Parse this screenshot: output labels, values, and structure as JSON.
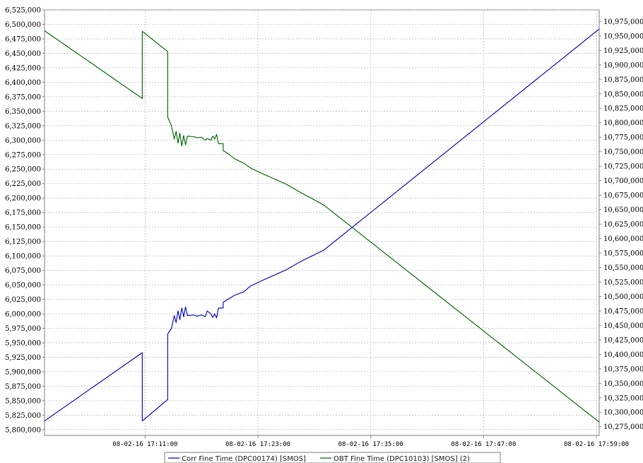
{
  "chart_data": {
    "type": "line",
    "grid": true,
    "legend_position": "bottom",
    "x_tick_labels": [
      "08-02-16 17:11:00",
      "08-02-16 17:23:00",
      "08-02-16 17:35:00",
      "08-02-16 17:47:00",
      "08-02-16 17:59:00"
    ],
    "x_ticks_min": [
      11,
      23,
      35,
      47,
      59
    ],
    "xlim_min": [
      0.3,
      59.3
    ],
    "y_left": {
      "lim": [
        5790000,
        6525000
      ],
      "ticks": [
        5800000,
        5825000,
        5850000,
        5875000,
        5900000,
        5925000,
        5950000,
        5975000,
        6000000,
        6025000,
        6050000,
        6075000,
        6100000,
        6125000,
        6150000,
        6175000,
        6200000,
        6225000,
        6250000,
        6275000,
        6300000,
        6325000,
        6350000,
        6375000,
        6400000,
        6425000,
        6450000,
        6475000,
        6500000,
        6525000
      ],
      "tick_labels": [
        "5,800,000",
        "5,825,000",
        "5,850,000",
        "5,875,000",
        "5,900,000",
        "5,925,000",
        "5,950,000",
        "5,975,000",
        "6,000,000",
        "6,025,000",
        "6,050,000",
        "6,075,000",
        "6,100,000",
        "6,125,000",
        "6,150,000",
        "6,175,000",
        "6,200,000",
        "6,225,000",
        "6,250,000",
        "6,275,000",
        "6,300,000",
        "6,325,000",
        "6,350,000",
        "6,375,000",
        "6,400,000",
        "6,425,000",
        "6,450,000",
        "6,475,000",
        "6,500,000",
        "6,525,000"
      ]
    },
    "y_right": {
      "lim": [
        10260000,
        10995000
      ],
      "ticks": [
        10275000,
        10300000,
        10325000,
        10350000,
        10375000,
        10400000,
        10425000,
        10450000,
        10475000,
        10500000,
        10525000,
        10550000,
        10575000,
        10600000,
        10625000,
        10650000,
        10675000,
        10700000,
        10725000,
        10750000,
        10775000,
        10800000,
        10825000,
        10850000,
        10875000,
        10900000,
        10925000,
        10950000,
        10975000
      ],
      "tick_labels": [
        "10,275,000",
        "10,300,000",
        "10,325,000",
        "10,350,000",
        "10,375,000",
        "10,400,000",
        "10,425,000",
        "10,450,000",
        "10,475,000",
        "10,500,000",
        "10,525,000",
        "10,550,000",
        "10,575,000",
        "10,600,000",
        "10,625,000",
        "10,650,000",
        "10,675,000",
        "10,700,000",
        "10,725,000",
        "10,750,000",
        "10,775,000",
        "10,800,000",
        "10,825,000",
        "10,850,000",
        "10,875,000",
        "10,900,000",
        "10,925,000",
        "10,950,000",
        "10,975,000"
      ]
    },
    "series": [
      {
        "name": "Corr Fine Time (DPC00174) [SMOS]",
        "color": "#0000cc",
        "axis": "left",
        "points": [
          [
            0.3,
            5815000
          ],
          [
            10.7,
            5933000
          ],
          [
            10.7,
            5815000
          ],
          [
            13.4,
            5852000
          ],
          [
            13.4,
            5965000
          ],
          [
            13.8,
            5975000
          ],
          [
            14.1,
            5997000
          ],
          [
            14.3,
            5985000
          ],
          [
            14.5,
            6005000
          ],
          [
            14.7,
            5990000
          ],
          [
            14.9,
            6010000
          ],
          [
            15.1,
            5995000
          ],
          [
            15.3,
            6012000
          ],
          [
            15.5,
            5997000
          ],
          [
            16.2,
            5998000
          ],
          [
            16.5,
            5996000
          ],
          [
            17.0,
            5998000
          ],
          [
            17.4,
            5995000
          ],
          [
            17.6,
            6005000
          ],
          [
            18.0,
            6000000
          ],
          [
            18.2,
            5994000
          ],
          [
            18.4,
            6000000
          ],
          [
            18.6,
            5993000
          ],
          [
            18.8,
            6010000
          ],
          [
            19.3,
            6010000
          ],
          [
            19.3,
            6020000
          ],
          [
            19.8,
            6025000
          ],
          [
            20.5,
            6032000
          ],
          [
            21.5,
            6038000
          ],
          [
            22.2,
            6048000
          ],
          [
            23.5,
            6058000
          ],
          [
            26.0,
            6076000
          ],
          [
            27.5,
            6090000
          ],
          [
            30.0,
            6110000
          ],
          [
            59.3,
            6492000
          ]
        ]
      },
      {
        "name": "OBT Fine Time (DPC10103) [SMOS] (2)",
        "color": "#006600",
        "axis": "right",
        "points": [
          [
            0.3,
            10959000
          ],
          [
            10.7,
            10842000
          ],
          [
            10.7,
            10958000
          ],
          [
            13.4,
            10923000
          ],
          [
            13.4,
            10810000
          ],
          [
            13.8,
            10795000
          ],
          [
            14.1,
            10772000
          ],
          [
            14.3,
            10785000
          ],
          [
            14.5,
            10765000
          ],
          [
            14.7,
            10782000
          ],
          [
            14.9,
            10760000
          ],
          [
            15.1,
            10778000
          ],
          [
            15.3,
            10762000
          ],
          [
            15.5,
            10777000
          ],
          [
            16.2,
            10776000
          ],
          [
            16.5,
            10774000
          ],
          [
            17.0,
            10775000
          ],
          [
            17.4,
            10770000
          ],
          [
            17.6,
            10773000
          ],
          [
            18.0,
            10770000
          ],
          [
            18.2,
            10777000
          ],
          [
            18.4,
            10772000
          ],
          [
            18.6,
            10780000
          ],
          [
            18.8,
            10764000
          ],
          [
            19.3,
            10764000
          ],
          [
            19.3,
            10752000
          ],
          [
            19.8,
            10747000
          ],
          [
            20.5,
            10738000
          ],
          [
            21.5,
            10730000
          ],
          [
            22.2,
            10722000
          ],
          [
            23.5,
            10712000
          ],
          [
            26.0,
            10694000
          ],
          [
            27.5,
            10680000
          ],
          [
            30.0,
            10658000
          ],
          [
            59.3,
            10283000
          ]
        ]
      }
    ]
  }
}
